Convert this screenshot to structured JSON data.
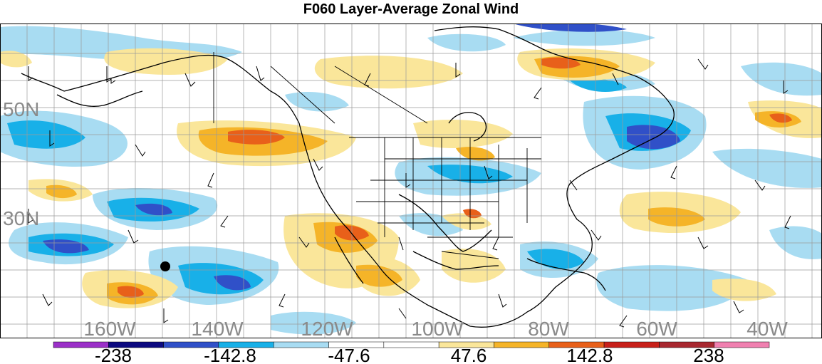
{
  "title": "F060 Layer-Average Zonal Wind",
  "map": {
    "lat_labels": [
      "50N",
      "30N"
    ],
    "lon_labels": [
      "160W",
      "140W",
      "120W",
      "100W",
      "80W",
      "60W",
      "40W"
    ],
    "marker": "black-dot"
  },
  "colorbar": {
    "labels": [
      "-238",
      "-142.8",
      "-47.6",
      "47.6",
      "142.8",
      "238"
    ],
    "colors": [
      "#9b30c8",
      "#0c0a80",
      "#3050c8",
      "#18b0e8",
      "#a8dcf2",
      "#ffffff",
      "#ffffff",
      "#fae69a",
      "#f5b428",
      "#e8601a",
      "#c8201a",
      "#a82830",
      "#f080b0"
    ]
  }
}
